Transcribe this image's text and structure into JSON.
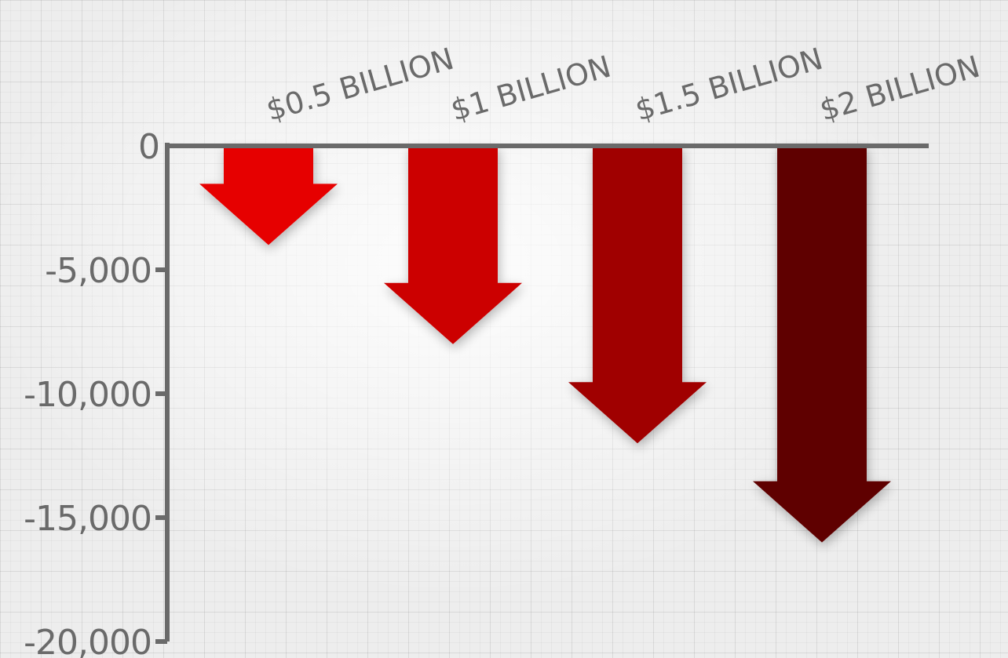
{
  "chart_data": {
    "type": "bar",
    "categories": [
      "$0.5 BILLION",
      "$1 BILLION",
      "$1.5 BILLION",
      "$2 BILLION"
    ],
    "values": [
      -4000,
      -8000,
      -12000,
      -16000
    ],
    "ylim": [
      -20000,
      0
    ],
    "yticks": [
      0,
      -5000,
      -10000,
      -15000,
      -20000
    ],
    "ytick_labels": [
      "0",
      "-5,000",
      "-10,000",
      "-15,000",
      "-20,000"
    ],
    "title": "",
    "xlabel": "",
    "ylabel": "",
    "grid": true,
    "colors": [
      "#e60000",
      "#cc0000",
      "#a00000",
      "#5e0000"
    ],
    "axis_color": "#6a6a6a"
  }
}
